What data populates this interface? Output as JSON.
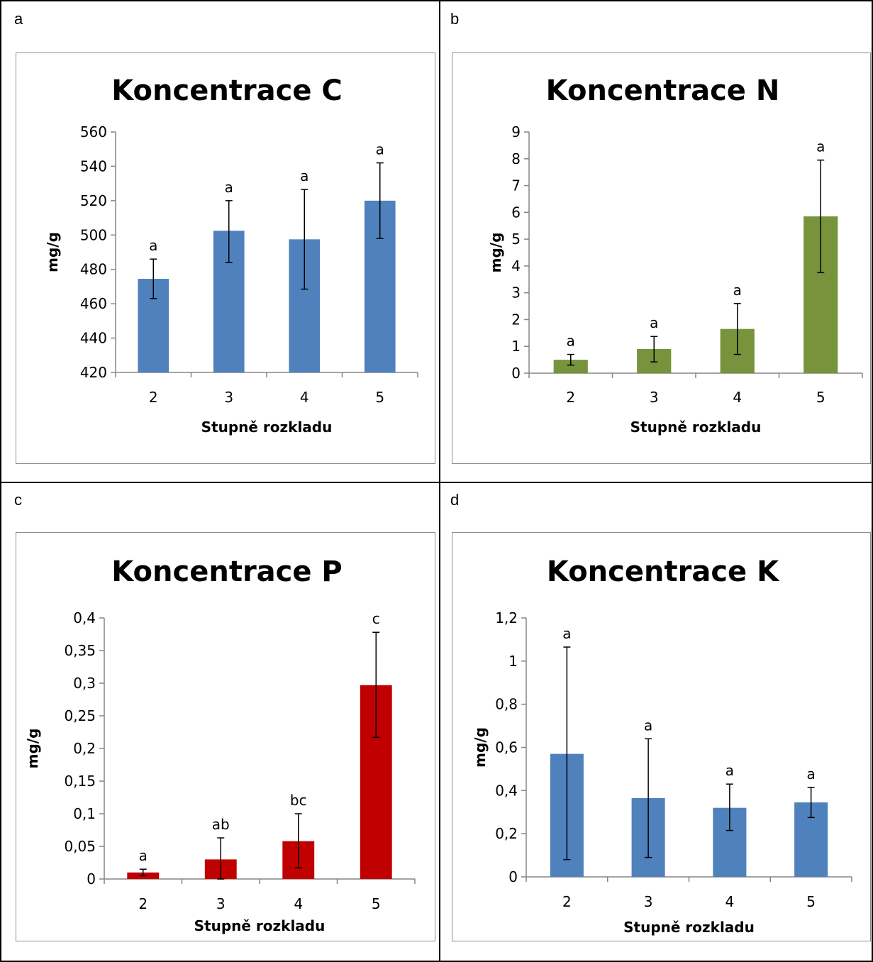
{
  "panels": [
    {
      "id": "a",
      "label": "a"
    },
    {
      "id": "b",
      "label": "b"
    },
    {
      "id": "c",
      "label": "c"
    },
    {
      "id": "d",
      "label": "d"
    }
  ],
  "chart_data": [
    {
      "type": "bar",
      "title": "Koncentrace C",
      "xlabel": "Stupně rozkladu",
      "ylabel": "mg/g",
      "categories": [
        "2",
        "3",
        "4",
        "5"
      ],
      "values": [
        474.5,
        502.5,
        497.5,
        520
      ],
      "error_low": [
        463,
        484,
        468.5,
        498
      ],
      "error_high": [
        486,
        520,
        526.5,
        542
      ],
      "significance": [
        "a",
        "a",
        "a",
        "a"
      ],
      "ylim": [
        420,
        560
      ],
      "yticks": [
        420,
        440,
        460,
        480,
        500,
        520,
        540,
        560
      ],
      "ytick_labels": [
        "420",
        "440",
        "460",
        "480",
        "500",
        "520",
        "540",
        "560"
      ],
      "color": "#4f81bd"
    },
    {
      "type": "bar",
      "title": "Koncentrace N",
      "xlabel": "Stupně rozkladu",
      "ylabel": "mg/g",
      "categories": [
        "2",
        "3",
        "4",
        "5"
      ],
      "values": [
        0.5,
        0.9,
        1.65,
        5.85
      ],
      "error_low": [
        0.3,
        0.42,
        0.7,
        3.75
      ],
      "error_high": [
        0.7,
        1.37,
        2.6,
        7.95
      ],
      "significance": [
        "a",
        "a",
        "a",
        "a"
      ],
      "ylim": [
        0,
        9
      ],
      "yticks": [
        0,
        1,
        2,
        3,
        4,
        5,
        6,
        7,
        8,
        9
      ],
      "ytick_labels": [
        "0",
        "1",
        "2",
        "3",
        "4",
        "5",
        "6",
        "7",
        "8",
        "9"
      ],
      "color": "#77933c"
    },
    {
      "type": "bar",
      "title": "Koncentrace P",
      "xlabel": "Stupně rozkladu",
      "ylabel": "mg/g",
      "categories": [
        "2",
        "3",
        "4",
        "5"
      ],
      "values": [
        0.01,
        0.03,
        0.058,
        0.297
      ],
      "error_low": [
        0.005,
        0.0,
        0.017,
        0.217
      ],
      "error_high": [
        0.015,
        0.063,
        0.1,
        0.378
      ],
      "significance": [
        "a",
        "ab",
        "bc",
        "c"
      ],
      "ylim": [
        0,
        0.4
      ],
      "yticks": [
        0,
        0.05,
        0.1,
        0.15,
        0.2,
        0.25,
        0.3,
        0.35,
        0.4
      ],
      "ytick_labels": [
        "0",
        "0,05",
        "0,1",
        "0,15",
        "0,2",
        "0,25",
        "0,3",
        "0,35",
        "0,4"
      ],
      "color": "#c00000"
    },
    {
      "type": "bar",
      "title": "Koncentrace K",
      "xlabel": "Stupně rozkladu",
      "ylabel": "mg/g",
      "categories": [
        "2",
        "3",
        "4",
        "5"
      ],
      "values": [
        0.57,
        0.365,
        0.32,
        0.345
      ],
      "error_low": [
        0.08,
        0.09,
        0.215,
        0.275
      ],
      "error_high": [
        1.065,
        0.64,
        0.43,
        0.415
      ],
      "significance": [
        "a",
        "a",
        "a",
        "a"
      ],
      "ylim": [
        0,
        1.2
      ],
      "yticks": [
        0,
        0.2,
        0.4,
        0.6,
        0.8,
        1.0,
        1.2
      ],
      "ytick_labels": [
        "0",
        "0,2",
        "0,4",
        "0,6",
        "0,8",
        "1",
        "1,2"
      ],
      "color": "#4f81bd"
    }
  ]
}
